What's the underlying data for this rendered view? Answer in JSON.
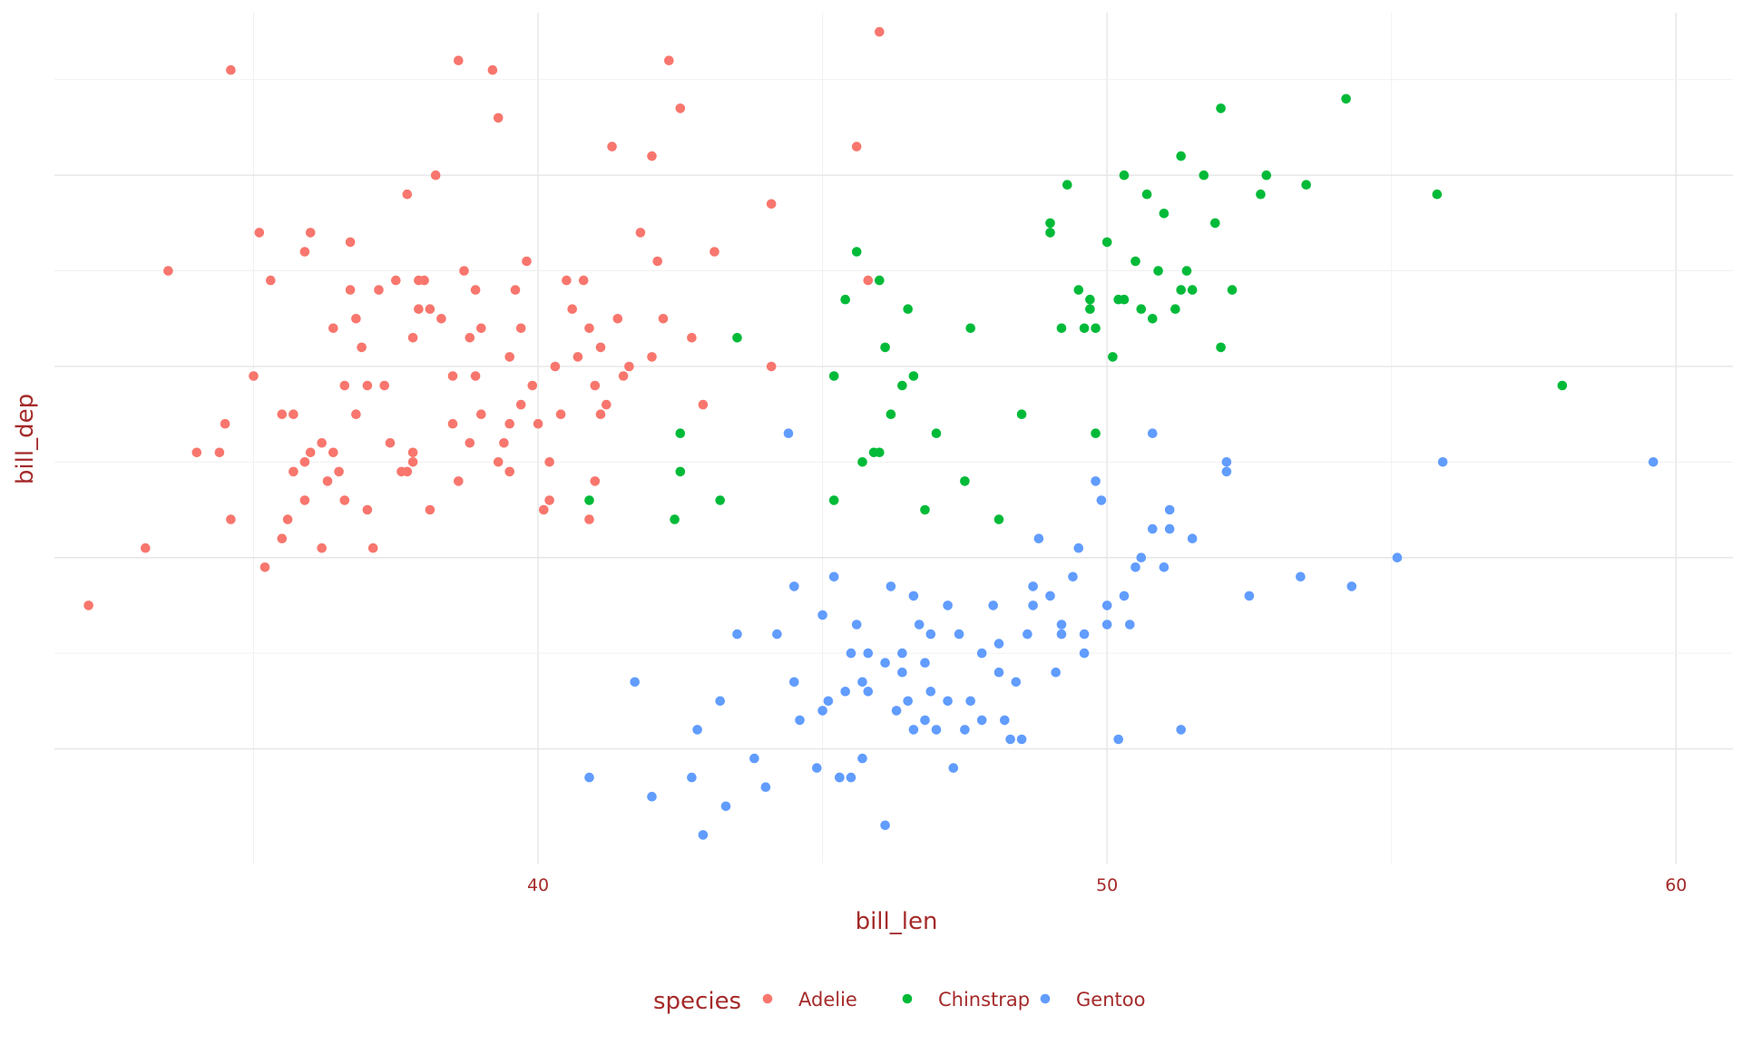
{
  "chart_data": {
    "type": "scatter",
    "title": "",
    "xlabel": "bill_len",
    "ylabel": "bill_dep",
    "xlim": [
      31.5,
      61
    ],
    "ylim": [
      12.8,
      21.7
    ],
    "x_ticks": [
      40,
      50,
      60
    ],
    "y_ticks": [],
    "grid": true,
    "legend": {
      "title": "species",
      "position": "bottom",
      "entries": [
        "Adelie",
        "Chinstrap",
        "Gentoo"
      ]
    },
    "colors": {
      "Adelie": "#f8766d",
      "Chinstrap": "#00ba38",
      "Gentoo": "#619cff",
      "text": "#a52a2a"
    },
    "series": [
      {
        "name": "Adelie",
        "points": [
          [
            32.1,
            15.5
          ],
          [
            33.1,
            16.1
          ],
          [
            33.5,
            19.0
          ],
          [
            34.0,
            17.1
          ],
          [
            34.4,
            17.1
          ],
          [
            34.5,
            17.4
          ],
          [
            34.6,
            21.1
          ],
          [
            34.6,
            16.4
          ],
          [
            35.0,
            17.9
          ],
          [
            35.1,
            19.4
          ],
          [
            35.2,
            15.9
          ],
          [
            35.3,
            18.9
          ],
          [
            35.5,
            16.2
          ],
          [
            35.5,
            17.5
          ],
          [
            35.7,
            16.9
          ],
          [
            35.7,
            17.5
          ],
          [
            35.9,
            16.6
          ],
          [
            35.9,
            19.2
          ],
          [
            36.0,
            17.1
          ],
          [
            36.2,
            16.1
          ],
          [
            36.2,
            17.2
          ],
          [
            36.4,
            17.1
          ],
          [
            36.5,
            16.9
          ],
          [
            36.6,
            17.8
          ],
          [
            36.7,
            18.8
          ],
          [
            36.7,
            19.3
          ],
          [
            36.8,
            18.5
          ],
          [
            37.0,
            16.5
          ],
          [
            37.1,
            16.1
          ],
          [
            37.3,
            17.8
          ],
          [
            37.5,
            18.9
          ],
          [
            37.6,
            16.9
          ],
          [
            37.7,
            19.8
          ],
          [
            37.8,
            18.3
          ],
          [
            37.8,
            17.1
          ],
          [
            37.9,
            18.6
          ],
          [
            38.1,
            18.6
          ],
          [
            38.2,
            20.0
          ],
          [
            38.5,
            17.9
          ],
          [
            38.6,
            21.2
          ],
          [
            38.7,
            19.0
          ],
          [
            38.8,
            17.2
          ],
          [
            38.9,
            18.8
          ],
          [
            39.0,
            17.5
          ],
          [
            39.2,
            21.1
          ],
          [
            39.3,
            20.6
          ],
          [
            39.5,
            17.4
          ],
          [
            39.6,
            18.8
          ],
          [
            39.7,
            18.4
          ],
          [
            39.8,
            19.1
          ],
          [
            40.2,
            17.0
          ],
          [
            40.3,
            18.0
          ],
          [
            40.5,
            18.9
          ],
          [
            40.6,
            18.6
          ],
          [
            40.8,
            18.9
          ],
          [
            41.1,
            17.5
          ],
          [
            41.1,
            18.2
          ],
          [
            41.3,
            20.3
          ],
          [
            41.4,
            18.5
          ],
          [
            41.6,
            18.0
          ],
          [
            41.8,
            19.4
          ],
          [
            42.0,
            20.2
          ],
          [
            42.1,
            19.1
          ],
          [
            42.2,
            18.5
          ],
          [
            42.3,
            21.2
          ],
          [
            42.5,
            20.7
          ],
          [
            42.7,
            18.3
          ],
          [
            42.9,
            17.6
          ],
          [
            43.1,
            19.2
          ],
          [
            44.1,
            19.7
          ],
          [
            44.1,
            18.0
          ],
          [
            45.6,
            20.3
          ],
          [
            45.8,
            18.9
          ],
          [
            46.0,
            21.5
          ],
          [
            36.0,
            19.4
          ],
          [
            37.2,
            18.8
          ],
          [
            38.0,
            18.9
          ],
          [
            38.8,
            18.3
          ],
          [
            39.0,
            18.4
          ],
          [
            39.5,
            18.1
          ],
          [
            40.0,
            17.4
          ],
          [
            40.7,
            18.1
          ],
          [
            41.0,
            17.8
          ],
          [
            41.2,
            17.6
          ],
          [
            37.4,
            17.2
          ],
          [
            36.9,
            18.2
          ],
          [
            38.3,
            18.5
          ],
          [
            39.9,
            17.8
          ],
          [
            40.4,
            17.5
          ],
          [
            37.0,
            17.8
          ],
          [
            38.5,
            17.4
          ],
          [
            39.4,
            17.2
          ],
          [
            36.4,
            18.4
          ],
          [
            37.9,
            18.9
          ],
          [
            38.9,
            17.9
          ],
          [
            39.7,
            17.6
          ],
          [
            40.9,
            18.4
          ],
          [
            41.5,
            17.9
          ],
          [
            42.0,
            18.1
          ],
          [
            36.8,
            17.5
          ],
          [
            37.8,
            17.0
          ],
          [
            38.6,
            16.8
          ],
          [
            39.3,
            17.0
          ],
          [
            40.2,
            16.6
          ],
          [
            41.0,
            16.8
          ],
          [
            35.9,
            17.0
          ],
          [
            36.6,
            16.6
          ],
          [
            37.7,
            16.9
          ],
          [
            38.1,
            16.5
          ],
          [
            39.5,
            16.9
          ],
          [
            40.1,
            16.5
          ],
          [
            40.9,
            16.4
          ],
          [
            35.6,
            16.4
          ],
          [
            36.3,
            16.8
          ]
        ]
      },
      {
        "name": "Chinstrap",
        "points": [
          [
            40.9,
            16.6
          ],
          [
            42.4,
            16.4
          ],
          [
            42.5,
            17.3
          ],
          [
            42.5,
            16.9
          ],
          [
            43.2,
            16.6
          ],
          [
            43.5,
            18.3
          ],
          [
            45.2,
            17.9
          ],
          [
            45.2,
            16.6
          ],
          [
            45.4,
            18.7
          ],
          [
            45.6,
            19.2
          ],
          [
            45.7,
            17.0
          ],
          [
            45.9,
            17.1
          ],
          [
            46.0,
            18.9
          ],
          [
            46.1,
            18.2
          ],
          [
            46.2,
            17.5
          ],
          [
            46.4,
            17.8
          ],
          [
            46.5,
            18.6
          ],
          [
            46.6,
            17.9
          ],
          [
            46.8,
            16.5
          ],
          [
            47.0,
            17.3
          ],
          [
            47.5,
            16.8
          ],
          [
            47.6,
            18.4
          ],
          [
            48.1,
            16.4
          ],
          [
            48.5,
            17.5
          ],
          [
            49.0,
            19.4
          ],
          [
            49.0,
            19.5
          ],
          [
            49.2,
            18.4
          ],
          [
            49.3,
            19.9
          ],
          [
            49.5,
            18.8
          ],
          [
            49.6,
            18.4
          ],
          [
            49.7,
            18.6
          ],
          [
            49.8,
            17.3
          ],
          [
            50.0,
            19.3
          ],
          [
            50.1,
            18.1
          ],
          [
            50.2,
            18.7
          ],
          [
            50.3,
            20.0
          ],
          [
            50.5,
            19.1
          ],
          [
            50.6,
            18.6
          ],
          [
            50.7,
            19.8
          ],
          [
            50.8,
            18.5
          ],
          [
            51.0,
            19.6
          ],
          [
            51.3,
            20.2
          ],
          [
            51.3,
            18.8
          ],
          [
            51.4,
            19.0
          ],
          [
            51.5,
            18.8
          ],
          [
            51.9,
            19.5
          ],
          [
            52.0,
            18.2
          ],
          [
            52.0,
            20.7
          ],
          [
            52.2,
            18.8
          ],
          [
            52.7,
            19.8
          ],
          [
            52.8,
            20.0
          ],
          [
            53.5,
            19.9
          ],
          [
            54.2,
            20.8
          ],
          [
            55.8,
            19.8
          ],
          [
            58.0,
            17.8
          ],
          [
            50.3,
            18.7
          ],
          [
            49.8,
            18.4
          ],
          [
            51.2,
            18.6
          ],
          [
            46.0,
            17.1
          ],
          [
            51.7,
            20.0
          ],
          [
            50.9,
            19.0
          ],
          [
            49.7,
            18.7
          ]
        ]
      },
      {
        "name": "Gentoo",
        "points": [
          [
            40.9,
            13.7
          ],
          [
            41.7,
            14.7
          ],
          [
            42.0,
            13.5
          ],
          [
            42.7,
            13.7
          ],
          [
            42.8,
            14.2
          ],
          [
            42.9,
            13.1
          ],
          [
            43.2,
            14.5
          ],
          [
            43.3,
            13.4
          ],
          [
            43.5,
            15.2
          ],
          [
            43.8,
            13.9
          ],
          [
            44.0,
            13.6
          ],
          [
            44.4,
            17.3
          ],
          [
            44.5,
            15.7
          ],
          [
            44.5,
            14.7
          ],
          [
            44.9,
            13.8
          ],
          [
            45.0,
            15.4
          ],
          [
            45.1,
            14.5
          ],
          [
            45.2,
            15.8
          ],
          [
            45.3,
            13.7
          ],
          [
            45.4,
            14.6
          ],
          [
            45.5,
            13.7
          ],
          [
            45.5,
            15.0
          ],
          [
            45.7,
            13.9
          ],
          [
            45.8,
            14.6
          ],
          [
            46.1,
            13.2
          ],
          [
            46.2,
            15.7
          ],
          [
            46.3,
            14.4
          ],
          [
            46.4,
            15.0
          ],
          [
            46.5,
            14.5
          ],
          [
            46.6,
            14.2
          ],
          [
            46.7,
            15.3
          ],
          [
            46.8,
            14.3
          ],
          [
            46.9,
            14.6
          ],
          [
            47.2,
            15.5
          ],
          [
            47.3,
            13.8
          ],
          [
            47.5,
            14.2
          ],
          [
            47.6,
            14.5
          ],
          [
            47.8,
            15.0
          ],
          [
            48.1,
            15.1
          ],
          [
            48.2,
            14.3
          ],
          [
            48.4,
            14.7
          ],
          [
            48.5,
            14.1
          ],
          [
            48.7,
            15.7
          ],
          [
            48.8,
            16.2
          ],
          [
            49.1,
            14.8
          ],
          [
            49.2,
            15.2
          ],
          [
            49.5,
            16.1
          ],
          [
            49.6,
            15.2
          ],
          [
            49.8,
            16.8
          ],
          [
            50.0,
            15.3
          ],
          [
            50.2,
            14.1
          ],
          [
            50.4,
            15.3
          ],
          [
            50.5,
            15.9
          ],
          [
            50.8,
            17.3
          ],
          [
            51.1,
            16.3
          ],
          [
            51.3,
            14.2
          ],
          [
            51.5,
            16.2
          ],
          [
            52.1,
            17.0
          ],
          [
            52.5,
            15.6
          ],
          [
            53.4,
            15.8
          ],
          [
            54.3,
            15.7
          ],
          [
            55.1,
            16.0
          ],
          [
            55.9,
            17.0
          ],
          [
            59.6,
            17.0
          ],
          [
            45.0,
            14.4
          ],
          [
            46.4,
            14.8
          ],
          [
            47.0,
            14.2
          ],
          [
            48.0,
            15.5
          ],
          [
            49.0,
            15.6
          ],
          [
            50.0,
            15.5
          ],
          [
            51.0,
            15.9
          ],
          [
            45.8,
            15.0
          ],
          [
            46.6,
            15.6
          ],
          [
            47.4,
            15.2
          ],
          [
            48.6,
            15.2
          ],
          [
            49.4,
            15.8
          ],
          [
            50.6,
            16.0
          ],
          [
            44.6,
            14.3
          ],
          [
            45.7,
            14.7
          ],
          [
            46.8,
            14.9
          ],
          [
            47.8,
            14.3
          ],
          [
            48.3,
            14.1
          ],
          [
            49.6,
            15.0
          ],
          [
            50.8,
            16.3
          ],
          [
            52.1,
            16.9
          ],
          [
            45.3,
            13.7
          ],
          [
            46.1,
            14.9
          ],
          [
            47.2,
            14.5
          ],
          [
            48.7,
            15.5
          ],
          [
            49.9,
            16.6
          ],
          [
            44.2,
            15.2
          ],
          [
            45.6,
            15.3
          ],
          [
            46.9,
            15.2
          ],
          [
            48.1,
            14.8
          ],
          [
            49.2,
            15.3
          ],
          [
            50.3,
            15.6
          ],
          [
            51.1,
            16.5
          ]
        ]
      }
    ]
  }
}
